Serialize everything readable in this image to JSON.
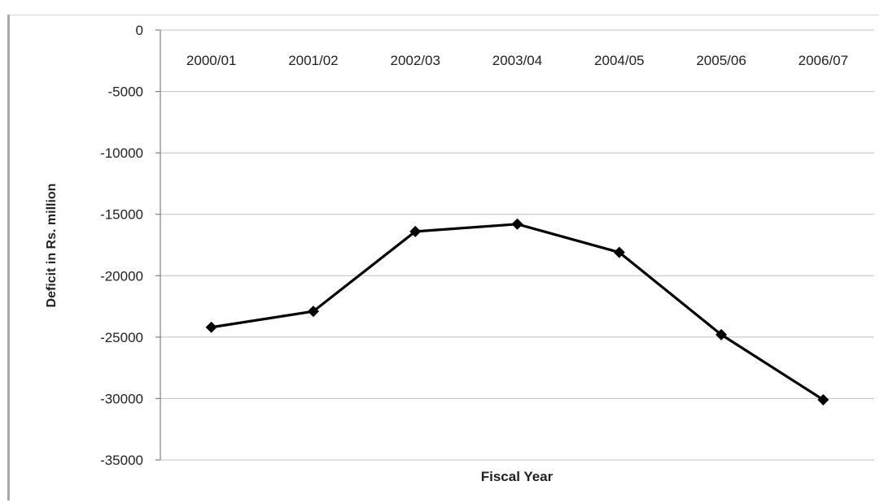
{
  "chart_data": {
    "type": "line",
    "title": "",
    "xlabel": "Fiscal Year",
    "ylabel": "Deficit in Rs. million",
    "categories": [
      "2000/01",
      "2001/02",
      "2002/03",
      "2003/04",
      "2004/05",
      "2005/06",
      "2006/07"
    ],
    "series": [
      {
        "values": [
          -24200,
          -22900,
          -16400,
          -15800,
          -18100,
          -24800,
          -30100
        ]
      }
    ],
    "ylim": [
      -35000,
      0
    ],
    "yticks": [
      0,
      -5000,
      -10000,
      -15000,
      -20000,
      -25000,
      -30000,
      -35000
    ],
    "grid": true,
    "legend": "none",
    "colors": {
      "line": "#000000",
      "grid": "#bfbfbf",
      "axis": "#7f7f7f"
    }
  }
}
